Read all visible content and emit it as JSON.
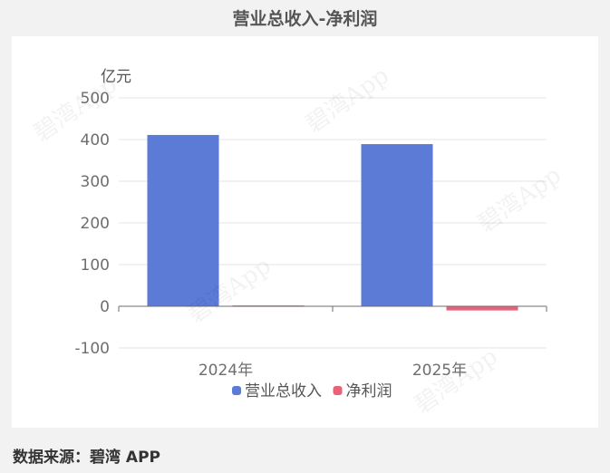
{
  "title": "营业总收入-净利润",
  "source": "数据来源：碧湾 APP",
  "watermark": "碧湾App",
  "chart_data": {
    "type": "bar",
    "ylabel": "亿元",
    "ylim": [
      -100,
      500
    ],
    "yticks": [
      -100,
      0,
      100,
      200,
      300,
      400,
      500
    ],
    "categories": [
      "2024年",
      "2025年"
    ],
    "series": [
      {
        "name": "营业总收入",
        "color": "#5b7bd6",
        "values": [
          411,
          389
        ]
      },
      {
        "name": "净利润",
        "color": "#e8627a",
        "values": [
          2,
          -10
        ]
      }
    ],
    "grid": true,
    "legend": "bottom"
  }
}
